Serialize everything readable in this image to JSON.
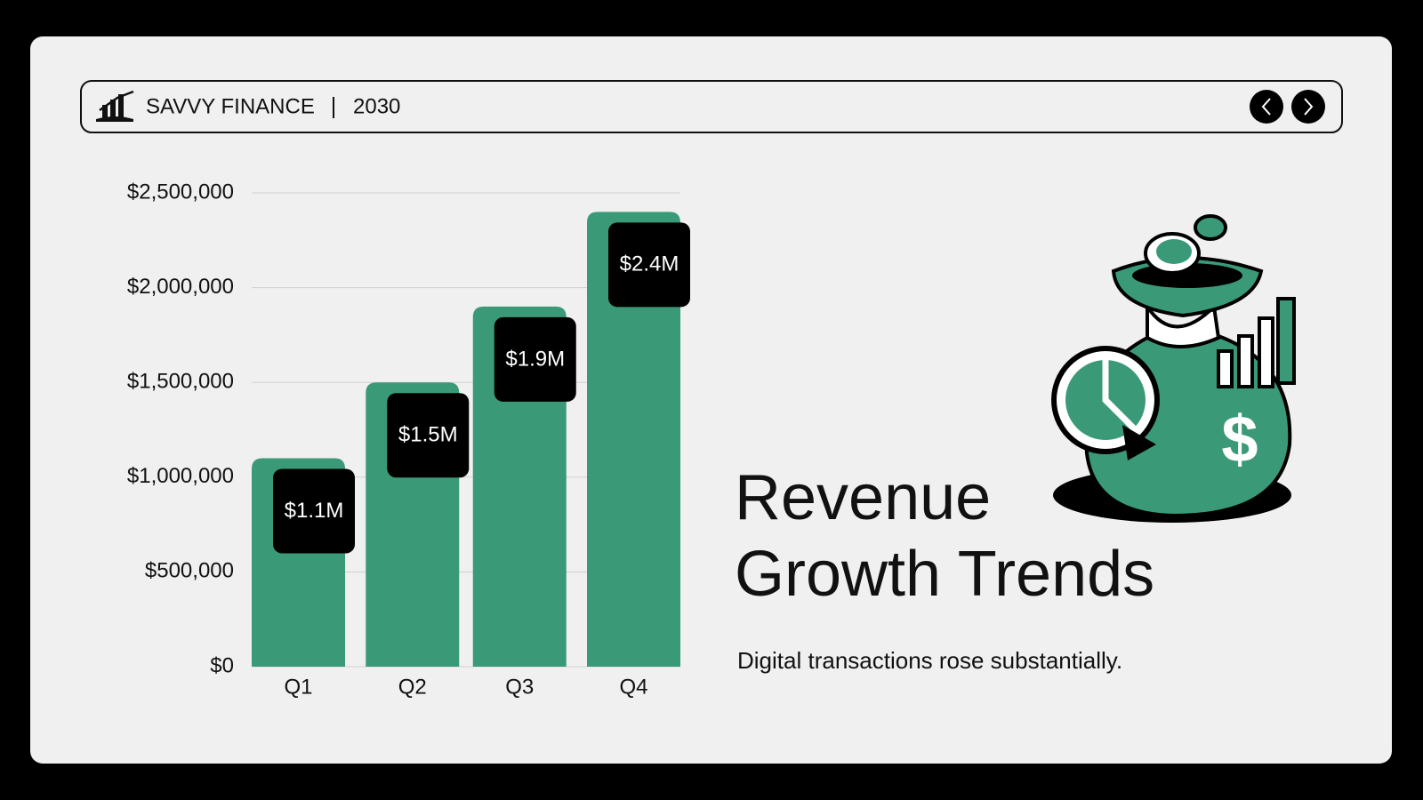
{
  "header": {
    "brand": "SAVVY FINANCE",
    "year": "2030"
  },
  "chart_data": {
    "type": "bar",
    "title": [
      "Revenue",
      "Growth Trends"
    ],
    "subtitle": "Digital transactions rose substantially.",
    "categories": [
      "Q1",
      "Q2",
      "Q3",
      "Q4"
    ],
    "values": [
      1100000,
      1500000,
      1900000,
      2400000
    ],
    "value_labels": [
      "$1.1M",
      "$1.5M",
      "$1.9M",
      "$2.4M"
    ],
    "color": "#3a9a78",
    "ylim": [
      0,
      2500000
    ],
    "yticks": [
      {
        "value": 0,
        "label": "$0"
      },
      {
        "value": 500000,
        "label": "$500,000"
      },
      {
        "value": 1000000,
        "label": "$1,000,000"
      },
      {
        "value": 1500000,
        "label": "$1,500,000"
      },
      {
        "value": 2000000,
        "label": "$2,000,000"
      },
      {
        "value": 2500000,
        "label": "$2,500,000"
      }
    ],
    "grid": true
  }
}
